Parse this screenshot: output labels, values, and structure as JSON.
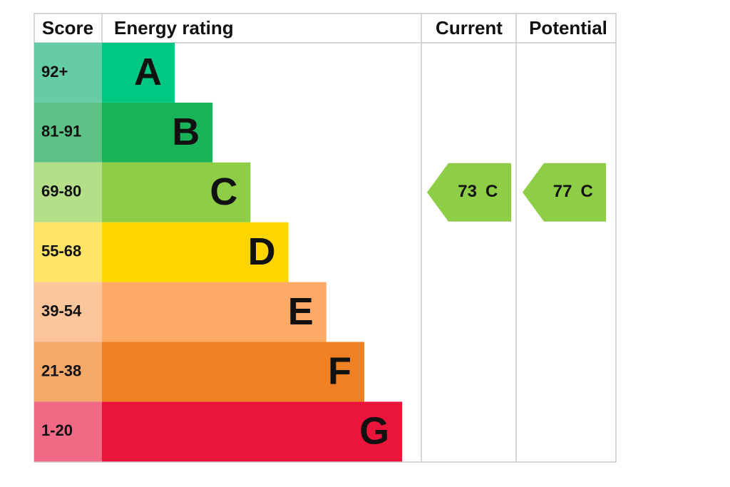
{
  "header": {
    "score": "Score",
    "rating": "Energy rating",
    "current": "Current",
    "potential": "Potential"
  },
  "bands": [
    {
      "score": "92+",
      "letter": "A",
      "color": "#00c781",
      "tint": "#66cca5"
    },
    {
      "score": "81-91",
      "letter": "B",
      "color": "#19b459",
      "tint": "#5dc285"
    },
    {
      "score": "69-80",
      "letter": "C",
      "color": "#8dce46",
      "tint": "#b4de88"
    },
    {
      "score": "55-68",
      "letter": "D",
      "color": "#ffd500",
      "tint": "#ffe466"
    },
    {
      "score": "39-54",
      "letter": "E",
      "color": "#fcaa65",
      "tint": "#fdc59b"
    },
    {
      "score": "21-38",
      "letter": "F",
      "color": "#ef8023",
      "tint": "#f4a86a"
    },
    {
      "score": "1-20",
      "letter": "G",
      "color": "#e9153b",
      "tint": "#f06a86"
    }
  ],
  "current": {
    "score": 73,
    "band": "C"
  },
  "potential": {
    "score": 77,
    "band": "C"
  }
}
